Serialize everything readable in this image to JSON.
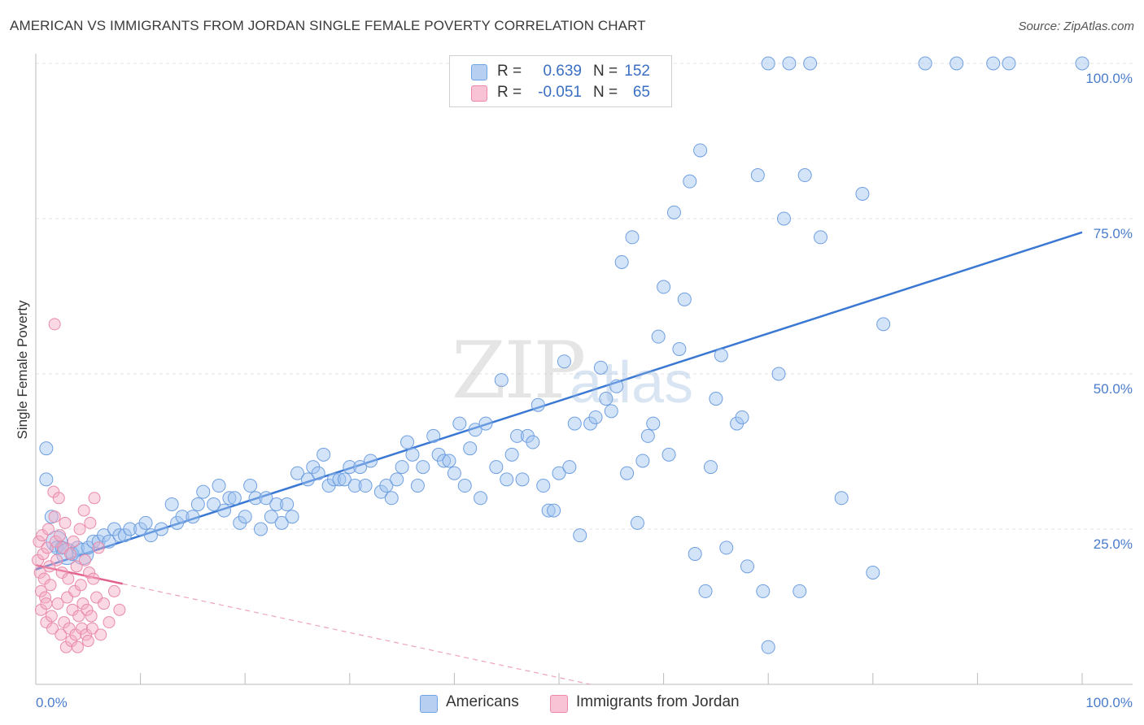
{
  "title": "AMERICAN VS IMMIGRANTS FROM JORDAN SINGLE FEMALE POVERTY CORRELATION CHART",
  "source": "Source: ZipAtlas.com",
  "watermark": {
    "zip": "ZIP",
    "atlas": "atlas"
  },
  "legend": {
    "r_label": "R =",
    "n_label": "N =",
    "series": [
      {
        "name": "Americans",
        "r": "0.639",
        "n": "152",
        "color": "#6fa3e6",
        "fill": "#b7d0f2"
      },
      {
        "name": "Immigrants from Jordan",
        "r": "-0.051",
        "n": "65",
        "color": "#ee88a8",
        "fill": "#f8c3d4"
      }
    ]
  },
  "chart_data": {
    "type": "scatter",
    "title": "AMERICAN VS IMMIGRANTS FROM JORDAN SINGLE FEMALE POVERTY CORRELATION CHART",
    "xlabel": "",
    "ylabel": "Single Female Poverty",
    "xlim": [
      0,
      100
    ],
    "ylim": [
      0,
      100
    ],
    "x_tick_labels": [
      "0.0%",
      "100.0%"
    ],
    "y_ticks": [
      25,
      50,
      75,
      100
    ],
    "y_tick_labels": [
      "25.0%",
      "50.0%",
      "75.0%",
      "100.0%"
    ],
    "grid": true,
    "series": [
      {
        "name": "Americans",
        "color": "#5b8fd8",
        "trend": {
          "x": [
            0,
            100
          ],
          "y": [
            18.5,
            72.8
          ],
          "style": "solid"
        },
        "points": [
          [
            1.0,
            38
          ],
          [
            1.0,
            33
          ],
          [
            1.5,
            27
          ],
          [
            2,
            23
          ],
          [
            2,
            22
          ],
          [
            2.5,
            22
          ],
          [
            3,
            21
          ],
          [
            3.5,
            21
          ],
          [
            4,
            22
          ],
          [
            4.5,
            21
          ],
          [
            5,
            22
          ],
          [
            5.5,
            23
          ],
          [
            6,
            23
          ],
          [
            6.5,
            24
          ],
          [
            7,
            23
          ],
          [
            7.5,
            25
          ],
          [
            8,
            24
          ],
          [
            8.5,
            24
          ],
          [
            9,
            25
          ],
          [
            10,
            25
          ],
          [
            10.5,
            26
          ],
          [
            11,
            24
          ],
          [
            12,
            25
          ],
          [
            13,
            29
          ],
          [
            13.5,
            26
          ],
          [
            14,
            27
          ],
          [
            15,
            27
          ],
          [
            15.5,
            29
          ],
          [
            16,
            31
          ],
          [
            17,
            29
          ],
          [
            17.5,
            32
          ],
          [
            18,
            28
          ],
          [
            18.5,
            30
          ],
          [
            19,
            30
          ],
          [
            19.5,
            26
          ],
          [
            20,
            27
          ],
          [
            20.5,
            32
          ],
          [
            21,
            30
          ],
          [
            21.5,
            25
          ],
          [
            22,
            30
          ],
          [
            22.5,
            27
          ],
          [
            23,
            29
          ],
          [
            23.5,
            26
          ],
          [
            24,
            29
          ],
          [
            24.5,
            27
          ],
          [
            25,
            34
          ],
          [
            26,
            33
          ],
          [
            26.5,
            35
          ],
          [
            27,
            34
          ],
          [
            27.5,
            37
          ],
          [
            28,
            32
          ],
          [
            28.5,
            33
          ],
          [
            29,
            33
          ],
          [
            29.5,
            33
          ],
          [
            30,
            35
          ],
          [
            30.5,
            32
          ],
          [
            31,
            35
          ],
          [
            31.5,
            32
          ],
          [
            32,
            36
          ],
          [
            33,
            31
          ],
          [
            33.5,
            32
          ],
          [
            34,
            30
          ],
          [
            34.5,
            33
          ],
          [
            35,
            35
          ],
          [
            35.5,
            39
          ],
          [
            36,
            37
          ],
          [
            36.5,
            32
          ],
          [
            37,
            35
          ],
          [
            38,
            40
          ],
          [
            38.5,
            37
          ],
          [
            39,
            36
          ],
          [
            39.5,
            36
          ],
          [
            40,
            34
          ],
          [
            40.5,
            42
          ],
          [
            41,
            32
          ],
          [
            41.5,
            38
          ],
          [
            42,
            41
          ],
          [
            42.5,
            30
          ],
          [
            43,
            42
          ],
          [
            44,
            35
          ],
          [
            44.5,
            49
          ],
          [
            45,
            33
          ],
          [
            45.5,
            37
          ],
          [
            46,
            40
          ],
          [
            46.5,
            33
          ],
          [
            47,
            40
          ],
          [
            47.5,
            39
          ],
          [
            48,
            45
          ],
          [
            48.5,
            32
          ],
          [
            49,
            28
          ],
          [
            49.5,
            28
          ],
          [
            50,
            34
          ],
          [
            50.5,
            52
          ],
          [
            51,
            35
          ],
          [
            51.5,
            42
          ],
          [
            52,
            24
          ],
          [
            53,
            42
          ],
          [
            53.5,
            43
          ],
          [
            54,
            51
          ],
          [
            54.5,
            46
          ],
          [
            55,
            44
          ],
          [
            55.5,
            48
          ],
          [
            56,
            68
          ],
          [
            56.5,
            34
          ],
          [
            57,
            72
          ],
          [
            57.5,
            26
          ],
          [
            58,
            36
          ],
          [
            58.5,
            40
          ],
          [
            59,
            42
          ],
          [
            59.5,
            56
          ],
          [
            60,
            64
          ],
          [
            60.5,
            37
          ],
          [
            61,
            76
          ],
          [
            61.5,
            54
          ],
          [
            62,
            62
          ],
          [
            62.5,
            81
          ],
          [
            63,
            21
          ],
          [
            63.5,
            86
          ],
          [
            64,
            15
          ],
          [
            64.5,
            35
          ],
          [
            65,
            46
          ],
          [
            65.5,
            53
          ],
          [
            66,
            22
          ],
          [
            67,
            42
          ],
          [
            67.5,
            43
          ],
          [
            68,
            19
          ],
          [
            69,
            82
          ],
          [
            69.5,
            15
          ],
          [
            70,
            100
          ],
          [
            71,
            50
          ],
          [
            71.5,
            75
          ],
          [
            72,
            100
          ],
          [
            73,
            15
          ],
          [
            73.5,
            82
          ],
          [
            74,
            100
          ],
          [
            75,
            72
          ],
          [
            77,
            30
          ],
          [
            79,
            79
          ],
          [
            80,
            18
          ],
          [
            81,
            58
          ],
          [
            88,
            100
          ],
          [
            93,
            100
          ],
          [
            100,
            100
          ],
          [
            85,
            100
          ],
          [
            91.5,
            100
          ],
          [
            57,
            100
          ],
          [
            70,
            6
          ]
        ]
      },
      {
        "name": "Immigrants from Jordan",
        "color": "#ea7aa0",
        "trend": {
          "x": [
            0,
            8.3,
            53
          ],
          "y": [
            19.2,
            16.2,
            0
          ],
          "style": "solid-then-dashed"
        },
        "points": [
          [
            0.2,
            20
          ],
          [
            0.3,
            23
          ],
          [
            0.4,
            18
          ],
          [
            0.5,
            15
          ],
          [
            0.5,
            12
          ],
          [
            0.6,
            24
          ],
          [
            0.7,
            21
          ],
          [
            0.8,
            17
          ],
          [
            0.9,
            14
          ],
          [
            1.0,
            13
          ],
          [
            1.0,
            10
          ],
          [
            1.1,
            22
          ],
          [
            1.2,
            25
          ],
          [
            1.3,
            19
          ],
          [
            1.4,
            16
          ],
          [
            1.5,
            11
          ],
          [
            1.6,
            9
          ],
          [
            1.7,
            31
          ],
          [
            1.8,
            27
          ],
          [
            1.9,
            23
          ],
          [
            2.0,
            20
          ],
          [
            2.1,
            13
          ],
          [
            2.2,
            30
          ],
          [
            2.3,
            24
          ],
          [
            2.4,
            8
          ],
          [
            2.5,
            18
          ],
          [
            2.6,
            22
          ],
          [
            2.7,
            10
          ],
          [
            2.8,
            26
          ],
          [
            2.9,
            6
          ],
          [
            3.0,
            14
          ],
          [
            3.1,
            17
          ],
          [
            3.2,
            9
          ],
          [
            3.3,
            21
          ],
          [
            3.4,
            7
          ],
          [
            3.5,
            12
          ],
          [
            3.6,
            23
          ],
          [
            3.7,
            15
          ],
          [
            3.8,
            8
          ],
          [
            3.9,
            19
          ],
          [
            4.0,
            6
          ],
          [
            4.1,
            11
          ],
          [
            4.2,
            25
          ],
          [
            4.3,
            16
          ],
          [
            4.4,
            9
          ],
          [
            4.5,
            13
          ],
          [
            4.6,
            28
          ],
          [
            4.7,
            20
          ],
          [
            4.8,
            8
          ],
          [
            4.9,
            12
          ],
          [
            5.0,
            7
          ],
          [
            5.1,
            18
          ],
          [
            5.2,
            26
          ],
          [
            5.3,
            11
          ],
          [
            5.4,
            9
          ],
          [
            5.5,
            17
          ],
          [
            5.6,
            30
          ],
          [
            5.8,
            14
          ],
          [
            6.0,
            22
          ],
          [
            6.2,
            8
          ],
          [
            6.5,
            13
          ],
          [
            7.0,
            10
          ],
          [
            7.5,
            15
          ],
          [
            8.0,
            12
          ],
          [
            1.8,
            58
          ]
        ]
      }
    ]
  }
}
